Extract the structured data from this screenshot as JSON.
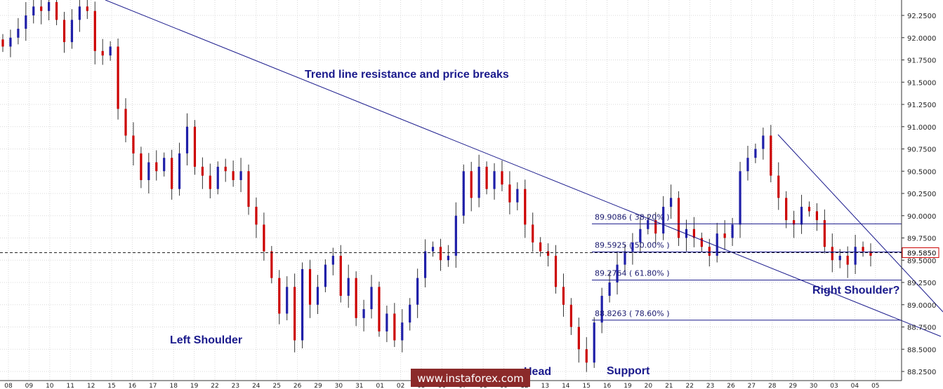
{
  "chart_data": {
    "type": "candlestick",
    "y_axis": {
      "ticks": [
        "92.2500",
        "92.0000",
        "91.7500",
        "91.5000",
        "91.2500",
        "91.0000",
        "90.7500",
        "90.5000",
        "90.2500",
        "90.0000",
        "89.7500",
        "89.5000",
        "89.2500",
        "89.0000",
        "88.7500",
        "88.5000",
        "88.2500"
      ],
      "ylim": [
        88.22,
        92.42
      ],
      "position": "right"
    },
    "x_axis": {
      "ticks": [
        "08",
        "09",
        "10",
        "11",
        "12",
        "15",
        "16",
        "17",
        "18",
        "19",
        "22",
        "23",
        "24",
        "25",
        "26",
        "29",
        "30",
        "31",
        "01",
        "02",
        "05",
        "06",
        "07",
        "08",
        "09",
        "12",
        "13",
        "14",
        "15",
        "16",
        "19",
        "20",
        "21",
        "22",
        "23",
        "26",
        "27",
        "28",
        "29",
        "30",
        "03",
        "04",
        "05"
      ]
    },
    "current_price": {
      "label": "89.5850",
      "value": 89.585
    },
    "annotations": [
      {
        "id": "trend",
        "text": "Trend line resistance and price breaks"
      },
      {
        "id": "left",
        "text": "Left Shoulder"
      },
      {
        "id": "head",
        "text": "Head"
      },
      {
        "id": "support",
        "text": "Support"
      },
      {
        "id": "right",
        "text": "Right Shoulder?"
      }
    ],
    "fib_levels": [
      {
        "label": "89.9086 ( 38.20% )",
        "value": 89.9086
      },
      {
        "label": "89.5925 ( 50.00% )",
        "value": 89.5925
      },
      {
        "label": "89.2764 ( 61.80% )",
        "value": 89.2764
      },
      {
        "label": "88.8263 ( 78.60% )",
        "value": 88.8263
      }
    ],
    "candles_close": [
      91.9,
      92.0,
      92.1,
      92.25,
      92.35,
      92.3,
      92.4,
      92.2,
      91.95,
      92.2,
      92.35,
      92.3,
      91.85,
      91.8,
      91.9,
      91.2,
      90.9,
      90.7,
      90.4,
      90.6,
      90.5,
      90.65,
      90.3,
      90.7,
      91.0,
      90.55,
      90.45,
      90.3,
      90.55,
      90.5,
      90.4,
      90.5,
      90.1,
      89.9,
      89.6,
      89.3,
      88.9,
      89.2,
      88.6,
      89.4,
      89.0,
      89.2,
      89.45,
      89.55,
      89.1,
      89.3,
      88.85,
      88.95,
      89.2,
      88.7,
      88.9,
      88.6,
      88.8,
      89.0,
      89.3,
      89.6,
      89.65,
      89.5,
      89.55,
      90.0,
      90.5,
      90.2,
      90.55,
      90.3,
      90.5,
      90.35,
      90.15,
      90.3,
      89.9,
      89.7,
      89.6,
      89.55,
      89.2,
      89.0,
      88.75,
      88.5,
      88.35,
      88.8,
      89.1,
      89.25,
      89.45,
      89.6,
      89.7,
      89.85,
      89.95,
      89.8,
      90.1,
      90.2,
      89.75,
      89.85,
      89.75,
      89.65,
      89.55,
      89.8,
      89.75,
      89.9,
      90.5,
      90.65,
      90.75,
      90.9,
      90.45,
      90.2,
      89.95,
      89.9,
      90.1,
      90.05,
      89.95,
      89.65,
      89.5,
      89.55,
      89.45,
      89.65,
      89.6,
      89.55
    ]
  },
  "watermark": {
    "text": "www.instaforex.com",
    "bg": "#8b2a2a"
  },
  "colors": {
    "bull": "#1f1fa8",
    "bear": "#cc0000",
    "line": "#1a1a8c",
    "grid": "#d8d8d8"
  }
}
